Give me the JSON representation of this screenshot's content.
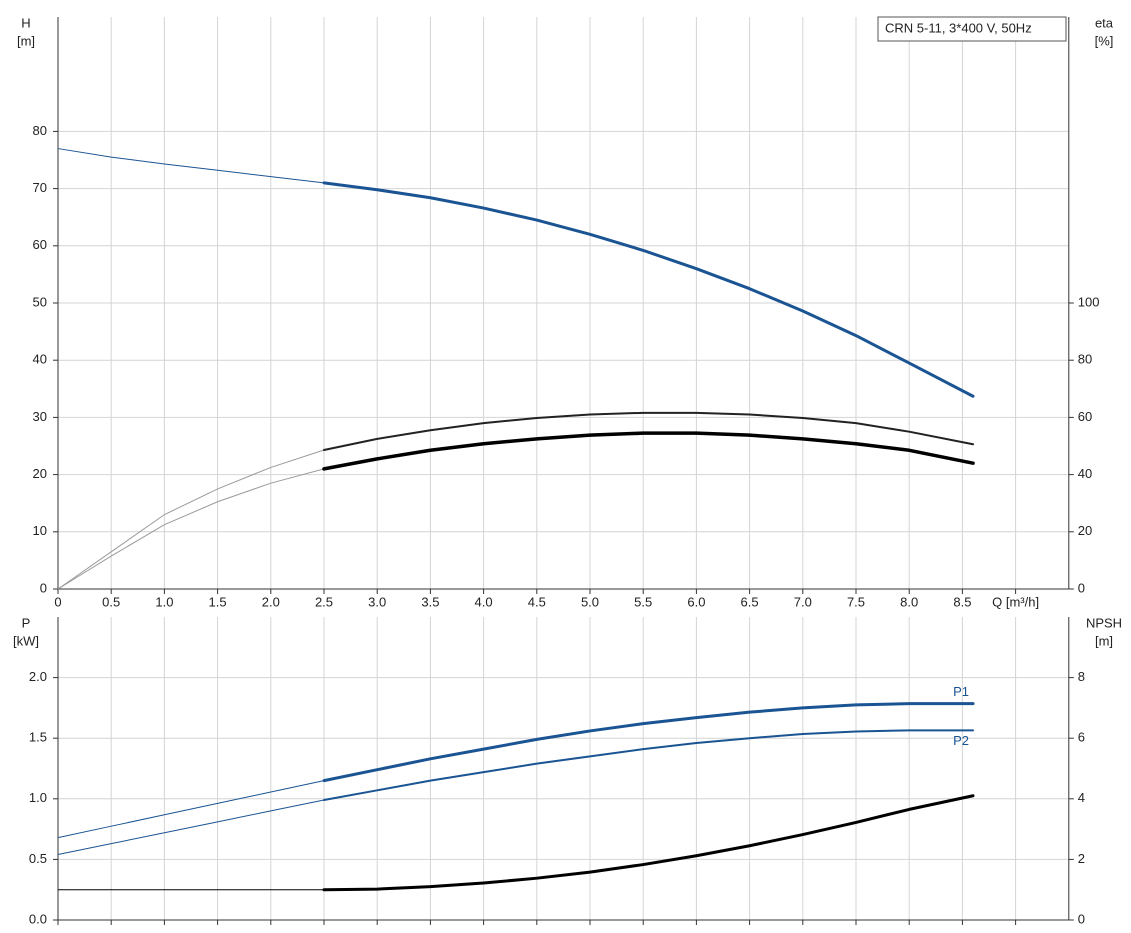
{
  "chart_data": [
    {
      "type": "line",
      "title": "CRN 5-11, 3*400 V, 50Hz",
      "ylabel": [
        "H",
        "[m]"
      ],
      "y2label": [
        "eta",
        "[%]"
      ],
      "x": [
        0,
        0.5,
        1,
        1.5,
        2,
        2.5,
        3,
        3.5,
        4,
        4.5,
        5,
        5.5,
        6,
        6.5,
        7,
        7.5,
        8,
        8.6
      ],
      "xlim": [
        0,
        9.5
      ],
      "xticks": [
        0,
        0.5,
        {
          "value": 1,
          "label": "1.0"
        },
        1.5,
        {
          "value": 2,
          "label": "2.0"
        },
        2.5,
        {
          "value": 3,
          "label": "3.0"
        },
        3.5,
        {
          "value": 4,
          "label": "4.0"
        },
        4.5,
        {
          "value": 5,
          "label": "5.0"
        },
        5.5,
        {
          "value": 6,
          "label": "6.0"
        },
        6.5,
        {
          "value": 7,
          "label": "7.0"
        },
        7.5,
        {
          "value": 8,
          "label": "8.0"
        },
        8.5,
        {
          "value": 9,
          "label": "Q [m³/h]"
        }
      ],
      "ylim": [
        0,
        100
      ],
      "yticks": [
        0,
        10,
        20,
        30,
        40,
        50,
        60,
        70,
        80
      ],
      "y2lim": [
        0,
        200
      ],
      "y2ticks": [
        0,
        20,
        40,
        60,
        80,
        100
      ],
      "grid": true,
      "show_xtick_labels": true,
      "highlight_from": 2.5,
      "series": [
        {
          "color": "#1a5493",
          "lead_color": "#1a5493",
          "width": 3,
          "values": [
            77,
            75.5,
            74.3,
            73.2,
            72.1,
            71,
            69.8,
            68.4,
            66.6,
            64.5,
            62,
            59.2,
            56,
            52.5,
            48.6,
            44.3,
            39.5,
            33.7
          ]
        },
        {
          "color": "#222222",
          "lead_color": "#9a9a9a",
          "width": 2,
          "axis": "y2",
          "values": [
            0,
            13,
            26,
            35,
            42.5,
            48.6,
            52.5,
            55.5,
            58,
            59.8,
            61,
            61.6,
            61.6,
            61,
            59.8,
            58,
            55,
            50.6
          ]
        },
        {
          "color": "#000000",
          "lead_color": "#9a9a9a",
          "width": 3.5,
          "axis": "y2",
          "values": [
            0,
            11.5,
            22.5,
            30.5,
            37,
            42,
            45.5,
            48.5,
            50.8,
            52.5,
            53.8,
            54.5,
            54.5,
            53.8,
            52.5,
            50.8,
            48.5,
            44
          ]
        }
      ]
    },
    {
      "type": "line",
      "ylabel": [
        "P",
        "[kW]"
      ],
      "y2label": [
        "NPSH",
        "[m]"
      ],
      "x": [
        0,
        0.5,
        1,
        1.5,
        2,
        2.5,
        3,
        3.5,
        4,
        4.5,
        5,
        5.5,
        6,
        6.5,
        7,
        7.5,
        8,
        8.6
      ],
      "xlim": [
        0,
        9.5
      ],
      "xticks": [
        0,
        0.5,
        1,
        1.5,
        2,
        2.5,
        3,
        3.5,
        4,
        4.5,
        5,
        5.5,
        6,
        6.5,
        7,
        7.5,
        8,
        8.5,
        9
      ],
      "ylim": [
        0,
        2.5
      ],
      "yticks": [
        {
          "value": 0,
          "label": "0.0"
        },
        0.5,
        {
          "value": 1,
          "label": "1.0"
        },
        1.5,
        {
          "value": 2,
          "label": "2.0"
        }
      ],
      "y2lim": [
        0,
        10
      ],
      "y2ticks": [
        0,
        2,
        4,
        6,
        8
      ],
      "grid": true,
      "show_xtick_labels": false,
      "highlight_from": 2.5,
      "series": [
        {
          "name": "P1",
          "label_side": "above",
          "color": "#1a5493",
          "lead_color": "#1a5493",
          "width": 3,
          "values": [
            0.68,
            0.774,
            0.868,
            0.962,
            1.056,
            1.15,
            1.24,
            1.33,
            1.41,
            1.49,
            1.56,
            1.62,
            1.67,
            1.715,
            1.75,
            1.775,
            1.785,
            1.785
          ]
        },
        {
          "name": "P2",
          "label_side": "below",
          "color": "#1a5493",
          "lead_color": "#1a5493",
          "width": 2,
          "values": [
            0.54,
            0.63,
            0.72,
            0.81,
            0.9,
            0.99,
            1.07,
            1.15,
            1.22,
            1.29,
            1.35,
            1.41,
            1.46,
            1.5,
            1.535,
            1.555,
            1.565,
            1.565
          ]
        },
        {
          "color": "#000000",
          "lead_color": "#000000",
          "width": 3,
          "axis": "y2",
          "values": [
            1,
            1,
            1,
            1,
            1,
            1,
            1.02,
            1.1,
            1.22,
            1.38,
            1.58,
            1.83,
            2.12,
            2.45,
            2.82,
            3.22,
            3.65,
            4.1
          ]
        }
      ]
    }
  ]
}
